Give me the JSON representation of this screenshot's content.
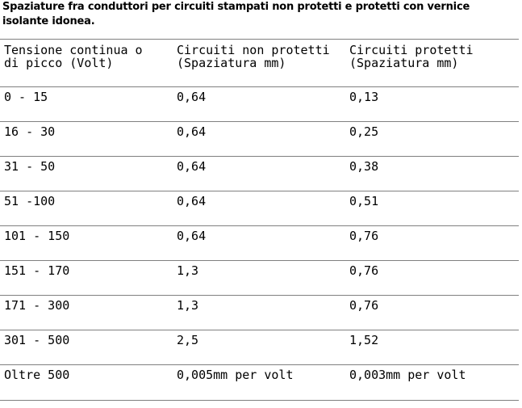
{
  "title": "Spaziature fra conduttori per circuiti stampati non protetti e protetti con vernice isolante idonea.",
  "table": {
    "headers": [
      "Tensione continua o\ndi picco (Volt)",
      "Circuiti non protetti\n(Spaziatura mm)",
      "Circuiti protetti\n(Spaziatura mm)"
    ],
    "rows": [
      [
        "0 - 15",
        "0,64",
        "0,13"
      ],
      [
        "16 - 30",
        "0,64",
        "0,25"
      ],
      [
        "31 - 50",
        "0,64",
        "0,38"
      ],
      [
        "51 -100",
        "0,64",
        "0,51"
      ],
      [
        "101 - 150",
        "0,64",
        "0,76"
      ],
      [
        "151 - 170",
        "1,3",
        "0,76"
      ],
      [
        "171 - 300",
        "1,3",
        "0,76"
      ],
      [
        "301 - 500",
        "2,5",
        "1,52"
      ],
      [
        "Oltre 500",
        "0,005mm per volt",
        "0,003mm per volt"
      ]
    ]
  }
}
